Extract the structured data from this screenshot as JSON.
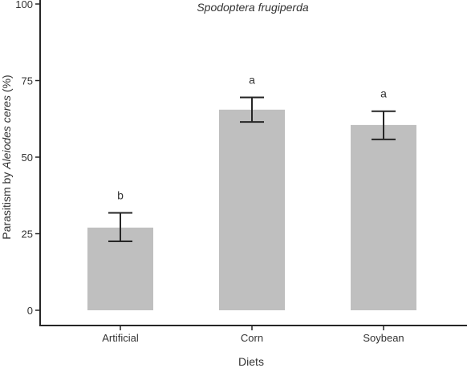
{
  "chart_data": {
    "type": "bar",
    "title": "Spodoptera frugiperda",
    "xlabel": "Diets",
    "ylabel_prefix": "Parasitism by ",
    "ylabel_species": "Aleiodes ceres",
    "ylabel_suffix": " (%)",
    "categories": [
      "Artificial",
      "Corn",
      "Soybean"
    ],
    "values": [
      27,
      65.5,
      60.5
    ],
    "error_low": [
      22.5,
      61.5,
      55.8
    ],
    "error_high": [
      31.8,
      69.5,
      65
    ],
    "significance_letters": [
      "b",
      "a",
      "a"
    ],
    "ylim": [
      0,
      100
    ],
    "yticks": [
      "0",
      "25",
      "50",
      "75",
      "100"
    ],
    "grid": false,
    "bar_color": "#bfbfbf",
    "error_bar_color": "#262626",
    "axis_color": "#262626"
  }
}
